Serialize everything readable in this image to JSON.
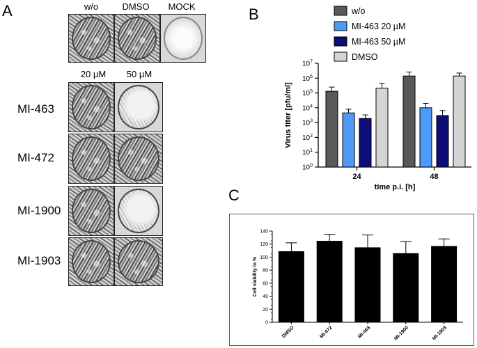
{
  "panel_a": {
    "letter": "A",
    "top_labels": [
      "w/o",
      "DMSO",
      "MOCK"
    ],
    "conc_labels": [
      "20 µM",
      "50 µM"
    ],
    "rows": [
      "MI-463",
      "MI-472",
      "MI-1900",
      "MI-1903"
    ]
  },
  "panel_b": {
    "letter": "B"
  },
  "panel_c": {
    "letter": "C"
  },
  "chart_data": [
    {
      "id": "virus-titer",
      "type": "bar",
      "categories": [
        "24",
        "48"
      ],
      "series": [
        {
          "name": "w/o",
          "color": "#595959",
          "values": [
            130000,
            1400000
          ],
          "error_upper": [
            250000,
            2600000
          ]
        },
        {
          "name": "MI-463 20 µM",
          "color": "#4e9af5",
          "values": [
            4500,
            10000
          ],
          "error_upper": [
            8000,
            20000
          ]
        },
        {
          "name": "MI-463 50 µM",
          "color": "#0d0d7a",
          "values": [
            1900,
            3000
          ],
          "error_upper": [
            3300,
            6500
          ]
        },
        {
          "name": "DMSO",
          "color": "#d4d4d4",
          "values": [
            210000,
            1400000
          ],
          "error_upper": [
            450000,
            2200000
          ]
        }
      ],
      "yscale": "log",
      "ylim": [
        1,
        10000000
      ],
      "yticks": [
        {
          "value": 1,
          "base": "10",
          "exp": "0"
        },
        {
          "value": 10,
          "base": "10",
          "exp": "1"
        },
        {
          "value": 100,
          "base": "10",
          "exp": "2"
        },
        {
          "value": 1000,
          "base": "10",
          "exp": "3"
        },
        {
          "value": 10000,
          "base": "10",
          "exp": "4"
        },
        {
          "value": 100000,
          "base": "10",
          "exp": "5"
        },
        {
          "value": 1000000,
          "base": "10",
          "exp": "6"
        },
        {
          "value": 10000000,
          "base": "10",
          "exp": "7"
        }
      ],
      "xlabel": "time p.i. [h]",
      "ylabel": "Virus titer [pfu/ml]",
      "legend_position": "top-right"
    },
    {
      "id": "cell-viability",
      "type": "bar",
      "categories": [
        "DMSO",
        "MI-472",
        "MI-463",
        "MI-1900",
        "MI-1903"
      ],
      "values": [
        109,
        125,
        115,
        106,
        117
      ],
      "error_upper": [
        122,
        135,
        134,
        124,
        128
      ],
      "color": "#000000",
      "ylim": [
        0,
        140
      ],
      "yticks": [
        0,
        20,
        40,
        60,
        80,
        100,
        120,
        140
      ],
      "xlabel": "",
      "ylabel": "Cell viability in %"
    }
  ]
}
